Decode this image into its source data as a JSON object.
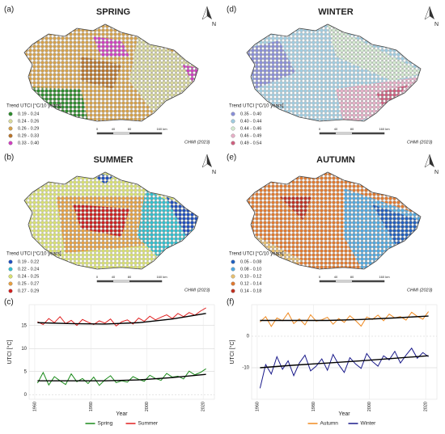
{
  "maps": [
    {
      "label": "(a)",
      "title": "SPRING",
      "legend_title": "Trend UTCI [°C/10 years]",
      "credit": "CHMI (2023)",
      "north": "N",
      "scale": [
        "0",
        "40",
        "80",
        "160 km"
      ],
      "classes": [
        {
          "label": "0.19 - 0.24",
          "color": "#2e8b2e"
        },
        {
          "label": "0.24 - 0.26",
          "color": "#d9d99c"
        },
        {
          "label": "0.26 - 0.29",
          "color": "#d4a04a"
        },
        {
          "label": "0.29 - 0.33",
          "color": "#b8742a"
        },
        {
          "label": "0.33 - 0.40",
          "color": "#d040c0"
        }
      ]
    },
    {
      "label": "(b)",
      "title": "SUMMER",
      "legend_title": "Trend UTCI [°C/10 years]",
      "credit": "CHMI (2023)",
      "north": "N",
      "scale": [
        "0",
        "40",
        "80",
        "160 km"
      ],
      "classes": [
        {
          "label": "0.19 - 0.22",
          "color": "#2050c0"
        },
        {
          "label": "0.22 - 0.24",
          "color": "#30c0d0"
        },
        {
          "label": "0.24 - 0.25",
          "color": "#d8e070"
        },
        {
          "label": "0.25 - 0.27",
          "color": "#e8a040"
        },
        {
          "label": "0.27 - 0.29",
          "color": "#d02020"
        }
      ]
    },
    {
      "label": "(d)",
      "title": "WINTER",
      "legend_title": "Trend UTCI [°C/10 years]",
      "credit": "CHMI (2023)",
      "north": "N",
      "scale": [
        "0",
        "40",
        "80",
        "160 km"
      ],
      "classes": [
        {
          "label": "0.35 - 0.40",
          "color": "#8a8fd8"
        },
        {
          "label": "0.40 - 0.44",
          "color": "#a0cce0"
        },
        {
          "label": "0.44 - 0.46",
          "color": "#d4ead0"
        },
        {
          "label": "0.46 - 0.49",
          "color": "#e8b0c8"
        },
        {
          "label": "0.49 - 0.54",
          "color": "#d06080"
        }
      ]
    },
    {
      "label": "(e)",
      "title": "AUTUMN",
      "legend_title": "Trend UTCI [°C/10 years]",
      "credit": "CHMI (2023)",
      "north": "N",
      "scale": [
        "0",
        "40",
        "80",
        "160 km"
      ],
      "classes": [
        {
          "label": "0.05 - 0.08",
          "color": "#2060c0"
        },
        {
          "label": "0.08 - 0.10",
          "color": "#50a8e0"
        },
        {
          "label": "0.10 - 0.12",
          "color": "#e8c070"
        },
        {
          "label": "0.12 - 0.14",
          "color": "#e07a30"
        },
        {
          "label": "0.14 - 0.18",
          "color": "#c03020"
        }
      ]
    }
  ],
  "chart_data": [
    {
      "type": "line",
      "label": "(c)",
      "xlabel": "Year",
      "ylabel": "UTCI [°C]",
      "x": [
        1961,
        1963,
        1965,
        1967,
        1969,
        1971,
        1973,
        1975,
        1977,
        1979,
        1981,
        1983,
        1985,
        1987,
        1989,
        1991,
        1993,
        1995,
        1997,
        1999,
        2001,
        2003,
        2005,
        2007,
        2009,
        2011,
        2013,
        2015,
        2017,
        2019,
        2021
      ],
      "xlim": [
        1958,
        2024
      ],
      "xticks": [
        1960,
        1980,
        2000,
        2020
      ],
      "ylim": [
        -1,
        19.5
      ],
      "yticks": [
        0,
        5,
        10,
        15
      ],
      "series": [
        {
          "name": "Spring",
          "color": "#1a8a1a",
          "values": [
            2.5,
            4.8,
            2.1,
            3.9,
            3.0,
            2.2,
            4.5,
            2.8,
            3.5,
            2.4,
            3.8,
            2.0,
            3.2,
            4.1,
            2.6,
            3.0,
            2.7,
            3.9,
            3.3,
            2.9,
            4.2,
            3.5,
            3.1,
            4.6,
            3.8,
            4.0,
            3.4,
            5.1,
            4.3,
            4.8,
            5.6
          ]
        },
        {
          "name": "Summer",
          "color": "#e02020",
          "values": [
            15.8,
            15.2,
            16.5,
            15.6,
            16.9,
            15.4,
            16.1,
            15.0,
            16.3,
            15.7,
            15.2,
            16.0,
            15.5,
            16.4,
            14.9,
            15.8,
            16.2,
            15.3,
            16.6,
            15.9,
            17.0,
            16.2,
            16.8,
            17.3,
            16.5,
            17.6,
            16.9,
            17.8,
            17.2,
            18.1,
            18.8
          ]
        }
      ],
      "trends": [
        {
          "color": "#000000",
          "x": [
            1961,
            1973,
            1985,
            1997,
            2009,
            2021
          ],
          "values": [
            3.0,
            3.0,
            3.0,
            3.2,
            3.7,
            4.4
          ]
        },
        {
          "color": "#000000",
          "x": [
            1961,
            1973,
            1985,
            1997,
            2009,
            2021
          ],
          "values": [
            15.6,
            15.4,
            15.3,
            15.6,
            16.4,
            17.6
          ]
        }
      ]
    },
    {
      "type": "line",
      "label": "(f)",
      "xlabel": "Year",
      "ylabel": "UTCI [°C]",
      "x": [
        1961,
        1963,
        1965,
        1967,
        1969,
        1971,
        1973,
        1975,
        1977,
        1979,
        1981,
        1983,
        1985,
        1987,
        1989,
        1991,
        1993,
        1995,
        1997,
        1999,
        2001,
        2003,
        2005,
        2007,
        2009,
        2011,
        2013,
        2015,
        2017,
        2019,
        2021
      ],
      "xlim": [
        1958,
        2024
      ],
      "xticks": [
        1960,
        1980,
        2000,
        2020
      ],
      "ylim": [
        -20,
        10
      ],
      "yticks": [
        -10,
        0
      ],
      "series": [
        {
          "name": "Autumn",
          "color": "#f08a20",
          "values": [
            4.5,
            6.2,
            3.1,
            5.8,
            4.9,
            7.4,
            4.0,
            5.5,
            3.6,
            6.8,
            4.8,
            5.2,
            6.0,
            3.8,
            5.6,
            4.4,
            6.5,
            5.0,
            3.2,
            6.1,
            5.3,
            6.7,
            4.9,
            7.0,
            5.8,
            6.2,
            5.1,
            7.6,
            6.3,
            5.4,
            7.8
          ]
        },
        {
          "name": "Winter",
          "color": "#1a1a8a",
          "values": [
            -16.5,
            -9.0,
            -12.0,
            -6.5,
            -10.5,
            -7.8,
            -12.5,
            -8.5,
            -6.0,
            -11.0,
            -9.5,
            -7.2,
            -10.8,
            -5.8,
            -9.0,
            -11.5,
            -6.8,
            -8.8,
            -10.2,
            -5.5,
            -8.0,
            -9.5,
            -6.2,
            -7.5,
            -4.8,
            -8.5,
            -6.0,
            -3.8,
            -7.0,
            -5.2,
            -6.5
          ]
        }
      ],
      "trends": [
        {
          "color": "#000000",
          "x": [
            1961,
            1973,
            1985,
            1997,
            2009,
            2021
          ],
          "values": [
            5.0,
            5.0,
            5.0,
            5.3,
            5.8,
            6.4
          ]
        },
        {
          "color": "#000000",
          "x": [
            1961,
            1973,
            1985,
            1997,
            2009,
            2021
          ],
          "values": [
            -10.0,
            -9.2,
            -8.5,
            -7.8,
            -7.0,
            -6.2
          ]
        }
      ]
    }
  ]
}
